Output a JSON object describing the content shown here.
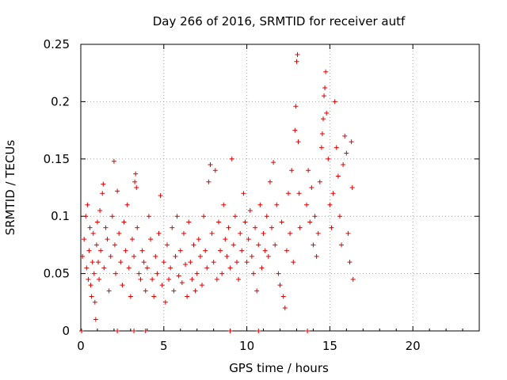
{
  "chart_data": {
    "type": "scatter",
    "title": "Day 266 of 2016, SRMTID for receiver autf",
    "xlabel": "GPS time / hours",
    "ylabel": "SRMTID / TECUs",
    "xlim": [
      0,
      24
    ],
    "ylim": [
      0,
      0.25
    ],
    "xticks": [
      0,
      5,
      10,
      15,
      20
    ],
    "xtick_labels": [
      "0",
      "5",
      "10",
      "15",
      "20"
    ],
    "yticks": [
      0,
      0.05,
      0.1,
      0.15,
      0.2,
      0.25
    ],
    "ytick_labels": [
      "0",
      "0.05",
      "0.1",
      "0.15",
      "0.2",
      "0.25"
    ],
    "grid": true,
    "marker": "+",
    "color": "#e00000",
    "series": [
      {
        "name": "SRMTID",
        "points": [
          [
            0.1,
            0.065
          ],
          [
            0.2,
            0.08
          ],
          [
            0.3,
            0.1
          ],
          [
            0.35,
            0.055
          ],
          [
            0.4,
            0.11
          ],
          [
            0.45,
            0.045
          ],
          [
            0.5,
            0.07
          ],
          [
            0.55,
            0.09
          ],
          [
            0.6,
            0.04
          ],
          [
            0.65,
            0.03
          ],
          [
            0.7,
            0.06
          ],
          [
            0.75,
            0.085
          ],
          [
            0.8,
            0.05
          ],
          [
            0.85,
            0.025
          ],
          [
            0.9,
            0.01
          ],
          [
            0.95,
            0.075
          ],
          [
            1.0,
            0.095
          ],
          [
            1.05,
            0.06
          ],
          [
            1.1,
            0.045
          ],
          [
            1.15,
            0.105
          ],
          [
            1.2,
            0.07
          ],
          [
            1.3,
            0.12
          ],
          [
            1.35,
            0.128
          ],
          [
            1.4,
            0.055
          ],
          [
            1.5,
            0.09
          ],
          [
            1.6,
            0.08
          ],
          [
            1.7,
            0.035
          ],
          [
            1.8,
            0.065
          ],
          [
            1.9,
            0.1
          ],
          [
            2.0,
            0.148
          ],
          [
            2.05,
            0.075
          ],
          [
            2.1,
            0.05
          ],
          [
            2.2,
            0.122
          ],
          [
            2.3,
            0.085
          ],
          [
            2.4,
            0.06
          ],
          [
            2.5,
            0.04
          ],
          [
            2.6,
            0.095
          ],
          [
            2.7,
            0.07
          ],
          [
            2.8,
            0.11
          ],
          [
            2.9,
            0.055
          ],
          [
            3.0,
            0.03
          ],
          [
            3.1,
            0.08
          ],
          [
            3.2,
            0.065
          ],
          [
            3.25,
            0.13
          ],
          [
            3.3,
            0.137
          ],
          [
            3.35,
            0.125
          ],
          [
            3.4,
            0.09
          ],
          [
            3.5,
            0.05
          ],
          [
            3.6,
            0.045
          ],
          [
            3.7,
            0.07
          ],
          [
            3.8,
            0.06
          ],
          [
            3.9,
            0.035
          ],
          [
            4.0,
            0.055
          ],
          [
            4.1,
            0.1
          ],
          [
            4.2,
            0.08
          ],
          [
            4.3,
            0.045
          ],
          [
            4.4,
            0.03
          ],
          [
            4.5,
            0.065
          ],
          [
            4.6,
            0.05
          ],
          [
            4.7,
            0.085
          ],
          [
            4.8,
            0.118
          ],
          [
            4.9,
            0.04
          ],
          [
            5.0,
            0.06
          ],
          [
            5.1,
            0.025
          ],
          [
            5.2,
            0.075
          ],
          [
            5.3,
            0.045
          ],
          [
            5.4,
            0.055
          ],
          [
            5.5,
            0.09
          ],
          [
            5.6,
            0.035
          ],
          [
            5.7,
            0.065
          ],
          [
            5.8,
            0.1
          ],
          [
            5.9,
            0.048
          ],
          [
            6.0,
            0.07
          ],
          [
            6.1,
            0.042
          ],
          [
            6.2,
            0.085
          ],
          [
            6.3,
            0.058
          ],
          [
            6.4,
            0.03
          ],
          [
            6.5,
            0.095
          ],
          [
            6.6,
            0.06
          ],
          [
            6.7,
            0.045
          ],
          [
            6.8,
            0.075
          ],
          [
            6.9,
            0.035
          ],
          [
            7.0,
            0.05
          ],
          [
            7.1,
            0.08
          ],
          [
            7.2,
            0.065
          ],
          [
            7.3,
            0.04
          ],
          [
            7.4,
            0.1
          ],
          [
            7.5,
            0.07
          ],
          [
            7.6,
            0.055
          ],
          [
            7.7,
            0.13
          ],
          [
            7.8,
            0.145
          ],
          [
            7.9,
            0.085
          ],
          [
            8.0,
            0.06
          ],
          [
            8.1,
            0.14
          ],
          [
            8.2,
            0.045
          ],
          [
            8.3,
            0.095
          ],
          [
            8.4,
            0.07
          ],
          [
            8.5,
            0.05
          ],
          [
            8.6,
            0.11
          ],
          [
            8.7,
            0.08
          ],
          [
            8.8,
            0.065
          ],
          [
            8.9,
            0.09
          ],
          [
            9.0,
            0.055
          ],
          [
            9.1,
            0.15
          ],
          [
            9.2,
            0.075
          ],
          [
            9.3,
            0.1
          ],
          [
            9.4,
            0.06
          ],
          [
            9.5,
            0.045
          ],
          [
            9.6,
            0.085
          ],
          [
            9.7,
            0.07
          ],
          [
            9.8,
            0.12
          ],
          [
            9.9,
            0.095
          ],
          [
            10.0,
            0.06
          ],
          [
            10.1,
            0.08
          ],
          [
            10.2,
            0.105
          ],
          [
            10.3,
            0.065
          ],
          [
            10.4,
            0.05
          ],
          [
            10.5,
            0.09
          ],
          [
            10.6,
            0.035
          ],
          [
            10.7,
            0.075
          ],
          [
            10.8,
            0.11
          ],
          [
            10.9,
            0.055
          ],
          [
            11.0,
            0.085
          ],
          [
            11.1,
            0.07
          ],
          [
            11.2,
            0.1
          ],
          [
            11.3,
            0.065
          ],
          [
            11.4,
            0.13
          ],
          [
            11.5,
            0.09
          ],
          [
            11.6,
            0.147
          ],
          [
            11.7,
            0.075
          ],
          [
            11.8,
            0.11
          ],
          [
            11.9,
            0.05
          ],
          [
            12.0,
            0.04
          ],
          [
            12.1,
            0.095
          ],
          [
            12.2,
            0.03
          ],
          [
            12.3,
            0.02
          ],
          [
            12.4,
            0.07
          ],
          [
            12.5,
            0.12
          ],
          [
            12.6,
            0.085
          ],
          [
            12.7,
            0.14
          ],
          [
            12.8,
            0.06
          ],
          [
            12.9,
            0.175
          ],
          [
            12.95,
            0.196
          ],
          [
            13.0,
            0.235
          ],
          [
            13.05,
            0.241
          ],
          [
            13.1,
            0.165
          ],
          [
            13.15,
            0.12
          ],
          [
            13.2,
            0.09
          ],
          [
            13.6,
            0.11
          ],
          [
            13.7,
            0.14
          ],
          [
            13.8,
            0.095
          ],
          [
            13.9,
            0.125
          ],
          [
            14.0,
            0.075
          ],
          [
            14.1,
            0.1
          ],
          [
            14.2,
            0.065
          ],
          [
            14.3,
            0.085
          ],
          [
            14.4,
            0.13
          ],
          [
            14.5,
            0.16
          ],
          [
            14.55,
            0.172
          ],
          [
            14.6,
            0.185
          ],
          [
            14.65,
            0.205
          ],
          [
            14.7,
            0.212
          ],
          [
            14.75,
            0.226
          ],
          [
            14.8,
            0.19
          ],
          [
            14.9,
            0.15
          ],
          [
            15.0,
            0.11
          ],
          [
            15.1,
            0.09
          ],
          [
            15.2,
            0.12
          ],
          [
            15.3,
            0.2
          ],
          [
            15.4,
            0.16
          ],
          [
            15.5,
            0.135
          ],
          [
            15.6,
            0.1
          ],
          [
            15.7,
            0.075
          ],
          [
            15.8,
            0.145
          ],
          [
            15.9,
            0.17
          ],
          [
            16.0,
            0.155
          ],
          [
            16.1,
            0.085
          ],
          [
            16.2,
            0.06
          ],
          [
            16.3,
            0.165
          ],
          [
            16.35,
            0.125
          ],
          [
            16.4,
            0.045
          ],
          [
            0.05,
            0.0
          ],
          [
            2.2,
            0.0
          ],
          [
            3.2,
            0.0
          ],
          [
            3.9,
            0.0
          ],
          [
            9.0,
            0.0
          ],
          [
            10.7,
            0.0
          ],
          [
            13.65,
            0.0
          ]
        ]
      }
    ]
  }
}
